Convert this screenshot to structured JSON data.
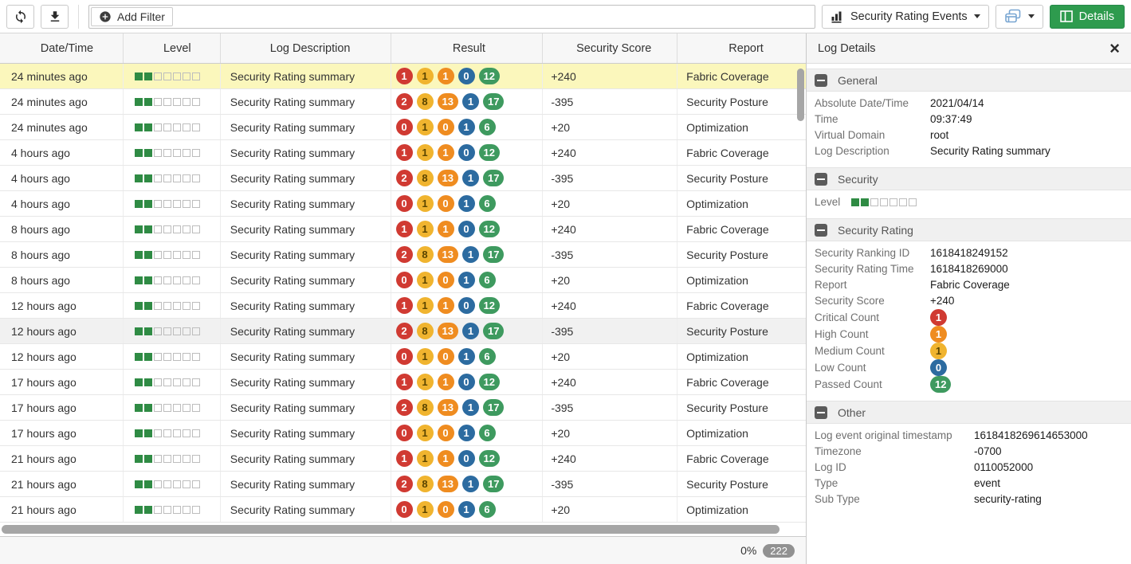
{
  "toolbar": {
    "add_filter_label": "Add Filter",
    "view_selector_label": "Security Rating Events",
    "details_button_label": "Details"
  },
  "table": {
    "columns": [
      "Date/Time",
      "Level",
      "Log Description",
      "Result",
      "Security Score",
      "Report"
    ],
    "rows": [
      {
        "time": "24 minutes ago",
        "level": 2,
        "description": "Security Rating summary",
        "result": [
          {
            "value": "1",
            "severity": "critical"
          },
          {
            "value": "1",
            "severity": "medium"
          },
          {
            "value": "1",
            "severity": "high"
          },
          {
            "value": "0",
            "severity": "low"
          },
          {
            "value": "12",
            "severity": "passed"
          }
        ],
        "score": "+240",
        "report": "Fabric Coverage",
        "state": "selected"
      },
      {
        "time": "24 minutes ago",
        "level": 2,
        "description": "Security Rating summary",
        "result": [
          {
            "value": "2",
            "severity": "critical"
          },
          {
            "value": "8",
            "severity": "medium"
          },
          {
            "value": "13",
            "severity": "high"
          },
          {
            "value": "1",
            "severity": "low"
          },
          {
            "value": "17",
            "severity": "passed"
          }
        ],
        "score": "-395",
        "report": "Security Posture",
        "state": ""
      },
      {
        "time": "24 minutes ago",
        "level": 2,
        "description": "Security Rating summary",
        "result": [
          {
            "value": "0",
            "severity": "critical"
          },
          {
            "value": "1",
            "severity": "medium"
          },
          {
            "value": "0",
            "severity": "high"
          },
          {
            "value": "1",
            "severity": "low"
          },
          {
            "value": "6",
            "severity": "passed"
          }
        ],
        "score": "+20",
        "report": "Optimization",
        "state": ""
      },
      {
        "time": "4 hours ago",
        "level": 2,
        "description": "Security Rating summary",
        "result": [
          {
            "value": "1",
            "severity": "critical"
          },
          {
            "value": "1",
            "severity": "medium"
          },
          {
            "value": "1",
            "severity": "high"
          },
          {
            "value": "0",
            "severity": "low"
          },
          {
            "value": "12",
            "severity": "passed"
          }
        ],
        "score": "+240",
        "report": "Fabric Coverage",
        "state": ""
      },
      {
        "time": "4 hours ago",
        "level": 2,
        "description": "Security Rating summary",
        "result": [
          {
            "value": "2",
            "severity": "critical"
          },
          {
            "value": "8",
            "severity": "medium"
          },
          {
            "value": "13",
            "severity": "high"
          },
          {
            "value": "1",
            "severity": "low"
          },
          {
            "value": "17",
            "severity": "passed"
          }
        ],
        "score": "-395",
        "report": "Security Posture",
        "state": ""
      },
      {
        "time": "4 hours ago",
        "level": 2,
        "description": "Security Rating summary",
        "result": [
          {
            "value": "0",
            "severity": "critical"
          },
          {
            "value": "1",
            "severity": "medium"
          },
          {
            "value": "0",
            "severity": "high"
          },
          {
            "value": "1",
            "severity": "low"
          },
          {
            "value": "6",
            "severity": "passed"
          }
        ],
        "score": "+20",
        "report": "Optimization",
        "state": ""
      },
      {
        "time": "8 hours ago",
        "level": 2,
        "description": "Security Rating summary",
        "result": [
          {
            "value": "1",
            "severity": "critical"
          },
          {
            "value": "1",
            "severity": "medium"
          },
          {
            "value": "1",
            "severity": "high"
          },
          {
            "value": "0",
            "severity": "low"
          },
          {
            "value": "12",
            "severity": "passed"
          }
        ],
        "score": "+240",
        "report": "Fabric Coverage",
        "state": ""
      },
      {
        "time": "8 hours ago",
        "level": 2,
        "description": "Security Rating summary",
        "result": [
          {
            "value": "2",
            "severity": "critical"
          },
          {
            "value": "8",
            "severity": "medium"
          },
          {
            "value": "13",
            "severity": "high"
          },
          {
            "value": "1",
            "severity": "low"
          },
          {
            "value": "17",
            "severity": "passed"
          }
        ],
        "score": "-395",
        "report": "Security Posture",
        "state": ""
      },
      {
        "time": "8 hours ago",
        "level": 2,
        "description": "Security Rating summary",
        "result": [
          {
            "value": "0",
            "severity": "critical"
          },
          {
            "value": "1",
            "severity": "medium"
          },
          {
            "value": "0",
            "severity": "high"
          },
          {
            "value": "1",
            "severity": "low"
          },
          {
            "value": "6",
            "severity": "passed"
          }
        ],
        "score": "+20",
        "report": "Optimization",
        "state": ""
      },
      {
        "time": "12 hours ago",
        "level": 2,
        "description": "Security Rating summary",
        "result": [
          {
            "value": "1",
            "severity": "critical"
          },
          {
            "value": "1",
            "severity": "medium"
          },
          {
            "value": "1",
            "severity": "high"
          },
          {
            "value": "0",
            "severity": "low"
          },
          {
            "value": "12",
            "severity": "passed"
          }
        ],
        "score": "+240",
        "report": "Fabric Coverage",
        "state": ""
      },
      {
        "time": "12 hours ago",
        "level": 2,
        "description": "Security Rating summary",
        "result": [
          {
            "value": "2",
            "severity": "critical"
          },
          {
            "value": "8",
            "severity": "medium"
          },
          {
            "value": "13",
            "severity": "high"
          },
          {
            "value": "1",
            "severity": "low"
          },
          {
            "value": "17",
            "severity": "passed"
          }
        ],
        "score": "-395",
        "report": "Security Posture",
        "state": "hover"
      },
      {
        "time": "12 hours ago",
        "level": 2,
        "description": "Security Rating summary",
        "result": [
          {
            "value": "0",
            "severity": "critical"
          },
          {
            "value": "1",
            "severity": "medium"
          },
          {
            "value": "0",
            "severity": "high"
          },
          {
            "value": "1",
            "severity": "low"
          },
          {
            "value": "6",
            "severity": "passed"
          }
        ],
        "score": "+20",
        "report": "Optimization",
        "state": ""
      },
      {
        "time": "17 hours ago",
        "level": 2,
        "description": "Security Rating summary",
        "result": [
          {
            "value": "1",
            "severity": "critical"
          },
          {
            "value": "1",
            "severity": "medium"
          },
          {
            "value": "1",
            "severity": "high"
          },
          {
            "value": "0",
            "severity": "low"
          },
          {
            "value": "12",
            "severity": "passed"
          }
        ],
        "score": "+240",
        "report": "Fabric Coverage",
        "state": ""
      },
      {
        "time": "17 hours ago",
        "level": 2,
        "description": "Security Rating summary",
        "result": [
          {
            "value": "2",
            "severity": "critical"
          },
          {
            "value": "8",
            "severity": "medium"
          },
          {
            "value": "13",
            "severity": "high"
          },
          {
            "value": "1",
            "severity": "low"
          },
          {
            "value": "17",
            "severity": "passed"
          }
        ],
        "score": "-395",
        "report": "Security Posture",
        "state": ""
      },
      {
        "time": "17 hours ago",
        "level": 2,
        "description": "Security Rating summary",
        "result": [
          {
            "value": "0",
            "severity": "critical"
          },
          {
            "value": "1",
            "severity": "medium"
          },
          {
            "value": "0",
            "severity": "high"
          },
          {
            "value": "1",
            "severity": "low"
          },
          {
            "value": "6",
            "severity": "passed"
          }
        ],
        "score": "+20",
        "report": "Optimization",
        "state": ""
      },
      {
        "time": "21 hours ago",
        "level": 2,
        "description": "Security Rating summary",
        "result": [
          {
            "value": "1",
            "severity": "critical"
          },
          {
            "value": "1",
            "severity": "medium"
          },
          {
            "value": "1",
            "severity": "high"
          },
          {
            "value": "0",
            "severity": "low"
          },
          {
            "value": "12",
            "severity": "passed"
          }
        ],
        "score": "+240",
        "report": "Fabric Coverage",
        "state": ""
      },
      {
        "time": "21 hours ago",
        "level": 2,
        "description": "Security Rating summary",
        "result": [
          {
            "value": "2",
            "severity": "critical"
          },
          {
            "value": "8",
            "severity": "medium"
          },
          {
            "value": "13",
            "severity": "high"
          },
          {
            "value": "1",
            "severity": "low"
          },
          {
            "value": "17",
            "severity": "passed"
          }
        ],
        "score": "-395",
        "report": "Security Posture",
        "state": ""
      },
      {
        "time": "21 hours ago",
        "level": 2,
        "description": "Security Rating summary",
        "result": [
          {
            "value": "0",
            "severity": "critical"
          },
          {
            "value": "1",
            "severity": "medium"
          },
          {
            "value": "0",
            "severity": "high"
          },
          {
            "value": "1",
            "severity": "low"
          },
          {
            "value": "6",
            "severity": "passed"
          }
        ],
        "score": "+20",
        "report": "Optimization",
        "state": ""
      }
    ]
  },
  "statusbar": {
    "progress": "0%",
    "count": "222"
  },
  "details_panel": {
    "title": "Log Details",
    "sections": [
      {
        "id": "general",
        "title": "General",
        "label_width": 145,
        "fields": [
          {
            "label": "Absolute Date/Time",
            "value": "2021/04/14"
          },
          {
            "label": "Time",
            "value": "09:37:49"
          },
          {
            "label": "Virtual Domain",
            "value": "root"
          },
          {
            "label": "Log Description",
            "value": "Security Rating summary"
          }
        ]
      },
      {
        "id": "security",
        "title": "Security",
        "label_width": 46,
        "fields": [
          {
            "label": "Level",
            "type": "level",
            "level": 2
          }
        ]
      },
      {
        "id": "security-rating",
        "title": "Security Rating",
        "label_width": 145,
        "fields": [
          {
            "label": "Security Ranking ID",
            "value": "1618418249152"
          },
          {
            "label": "Security Rating Time",
            "value": "1618418269000"
          },
          {
            "label": "Report",
            "value": "Fabric Coverage"
          },
          {
            "label": "Security Score",
            "value": "+240"
          },
          {
            "label": "Critical Count",
            "type": "badge",
            "severity": "critical",
            "value": "1"
          },
          {
            "label": "High Count",
            "type": "badge",
            "severity": "high",
            "value": "1"
          },
          {
            "label": "Medium Count",
            "type": "badge",
            "severity": "medium",
            "value": "1"
          },
          {
            "label": "Low Count",
            "type": "badge",
            "severity": "low",
            "value": "0"
          },
          {
            "label": "Passed Count",
            "type": "badge",
            "severity": "passed",
            "value": "12"
          }
        ]
      },
      {
        "id": "other",
        "title": "Other",
        "label_width": 200,
        "fields": [
          {
            "label": "Log event original timestamp",
            "value": "1618418269614653000"
          },
          {
            "label": "Timezone",
            "value": "-0700"
          },
          {
            "label": "Log ID",
            "value": "0110052000"
          },
          {
            "label": "Type",
            "value": "event"
          },
          {
            "label": "Sub Type",
            "value": "security-rating"
          }
        ]
      }
    ]
  },
  "icons": {
    "toolbar": [
      "refresh-icon",
      "download-icon",
      "add-circle-icon",
      "bar-chart-icon",
      "stacked-tables-icon",
      "columns-icon"
    ],
    "panel": [
      "close-icon",
      "collapse-minus-icon"
    ]
  },
  "colors": {
    "details_button_green": "#2e9b4e",
    "selected_row_yellow": "#fbf7bc",
    "hover_row_gray": "#f1f1f1",
    "level_green": "#2f8b44",
    "badge_critical_red": "#d03a32",
    "badge_medium_yellow": "#f0b42f",
    "badge_high_orange": "#ef8c20",
    "badge_low_blue": "#2c6ba0",
    "badge_passed_green": "#3e9a5f",
    "stacked_icon_blue": "#79a6d2",
    "scrollbar_gray": "#a6a6a6"
  }
}
